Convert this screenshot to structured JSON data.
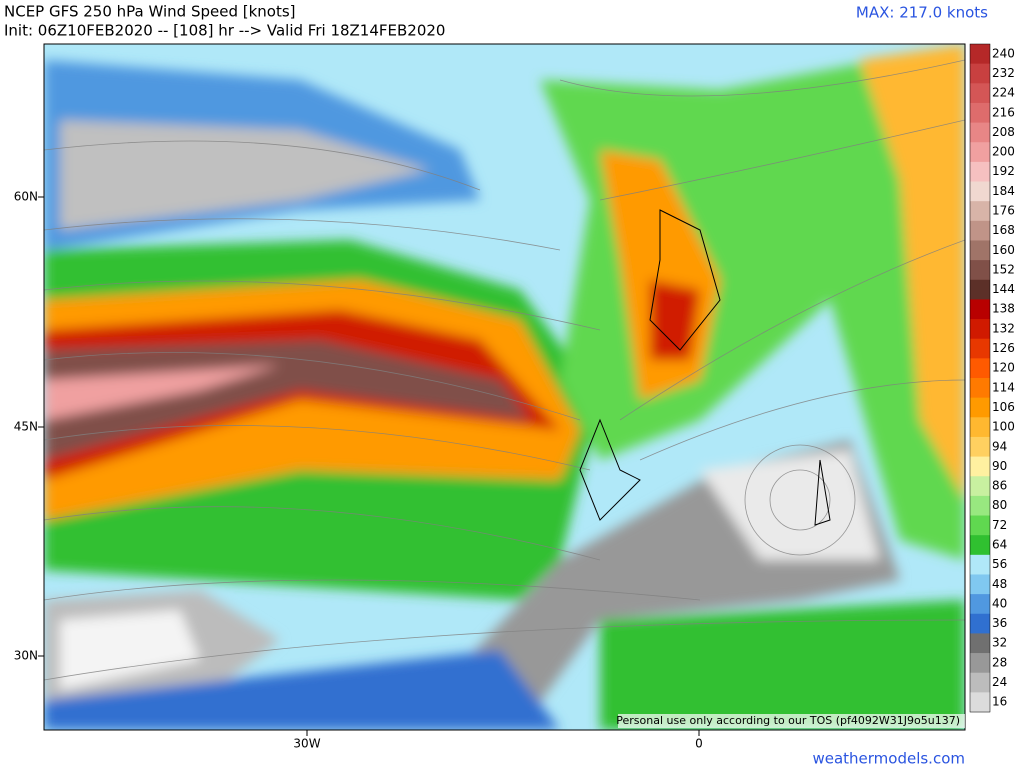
{
  "header": {
    "title": "NCEP GFS 250 hPa Wind Speed [knots]",
    "subtitle": "Init: 06Z10FEB2020 -- [108] hr --> Valid Fri 18Z14FEB2020",
    "max_label": "MAX: 217.0 knots"
  },
  "map": {
    "lat_labels": [
      "60N",
      "45N",
      "30N"
    ],
    "lon_labels": [
      "30W",
      "0"
    ],
    "disclaimer": "Personal use only according to our TOS (pf4092W31J9o5u137)"
  },
  "colorbar": {
    "labels": [
      "240",
      "232",
      "224",
      "216",
      "208",
      "200",
      "192",
      "184",
      "176",
      "168",
      "160",
      "152",
      "144",
      "138",
      "132",
      "126",
      "120",
      "114",
      "106",
      "100",
      "94",
      "90",
      "86",
      "80",
      "72",
      "64",
      "56",
      "48",
      "40",
      "36",
      "32",
      "28",
      "24",
      "16"
    ],
    "colors": [
      "#b52828",
      "#c84040",
      "#d45656",
      "#de6c6c",
      "#e88686",
      "#f0a0a0",
      "#f6c0c0",
      "#f0d8d0",
      "#d8b4a8",
      "#c09488",
      "#a07468",
      "#805048",
      "#5c3028",
      "#b80000",
      "#d01a00",
      "#e83800",
      "#ff5a00",
      "#ff7a00",
      "#ff9a00",
      "#ffb830",
      "#ffd060",
      "#fff0a0",
      "#c8f0a0",
      "#98e880",
      "#60d850",
      "#30c030",
      "#b0e8f8",
      "#80c8f0",
      "#5098e0",
      "#3070d0",
      "#707070",
      "#989898",
      "#bcbcbc",
      "#dcdcdc"
    ]
  },
  "footer": {
    "site": "weathermodels.com"
  }
}
